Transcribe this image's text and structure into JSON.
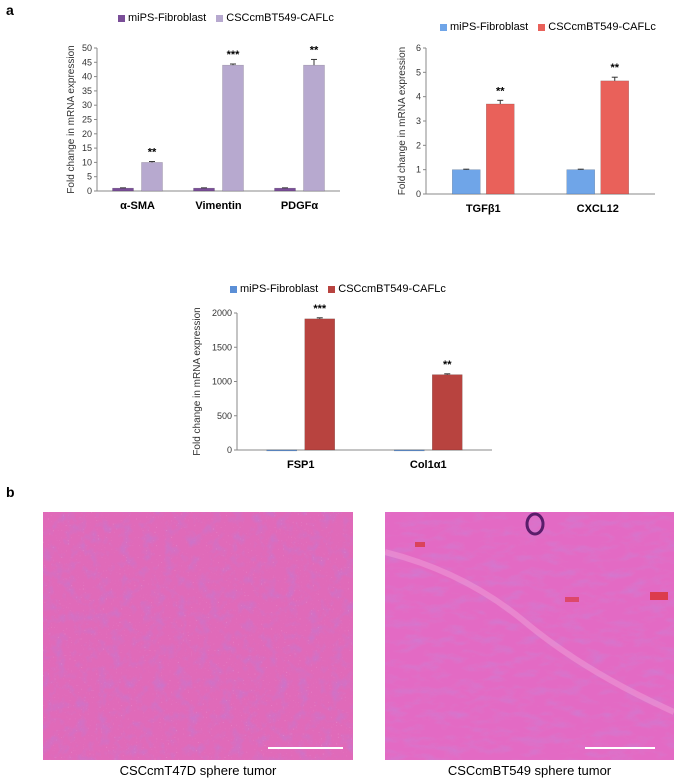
{
  "panel_labels": {
    "a": "a",
    "b": "b"
  },
  "chart_data": [
    {
      "type": "bar",
      "ylabel": "Fold change in mRNA expression",
      "ylim": [
        0,
        50
      ],
      "yticks": [
        0,
        5,
        10,
        15,
        20,
        25,
        30,
        35,
        40,
        45,
        50
      ],
      "categories": [
        "α-SMA",
        "Vimentin",
        "PDGFα"
      ],
      "series": [
        {
          "name": "miPS-Fibroblast",
          "color": "#7a4e98",
          "values": [
            1,
            1,
            1
          ],
          "errors": [
            0.1,
            0.1,
            0.1
          ]
        },
        {
          "name": "CSCcmBT549-CAFLc",
          "color": "#b7a9cf",
          "values": [
            10,
            44,
            44
          ],
          "errors": [
            0.3,
            0.4,
            2.0
          ]
        }
      ],
      "significance": [
        "**",
        "***",
        "**"
      ],
      "legend": "top"
    },
    {
      "type": "bar",
      "ylabel": "Fold change in mRNA expression",
      "ylim": [
        0,
        6
      ],
      "yticks": [
        0,
        1,
        2,
        3,
        4,
        5,
        6
      ],
      "categories": [
        "TGFβ1",
        "CXCL12"
      ],
      "series": [
        {
          "name": "miPS-Fibroblast",
          "color": "#6fa5e8",
          "values": [
            1,
            1
          ],
          "errors": [
            0.02,
            0.02
          ]
        },
        {
          "name": "CSCcmBT549-CAFLc",
          "color": "#e9615a",
          "values": [
            3.7,
            4.65
          ],
          "errors": [
            0.15,
            0.15
          ]
        }
      ],
      "significance": [
        "**",
        "**"
      ],
      "legend": "top"
    },
    {
      "type": "bar",
      "ylabel": "Fold change in mRNA expression",
      "ylim": [
        0,
        2000
      ],
      "yticks": [
        0,
        500,
        1000,
        1500,
        2000
      ],
      "categories": [
        "FSP1",
        "Col1α1"
      ],
      "series": [
        {
          "name": "miPS-Fibroblast",
          "color": "#5b8fd6",
          "values": [
            1,
            1
          ],
          "errors": [
            0,
            0
          ]
        },
        {
          "name": "CSCcmBT549-CAFLc",
          "color": "#b8433f",
          "values": [
            1915,
            1100
          ],
          "errors": [
            15,
            12
          ]
        }
      ],
      "significance": [
        "***",
        "**"
      ],
      "legend": "top"
    }
  ],
  "images": [
    {
      "caption": "CSCcmT47D sphere tumor",
      "description_icon": "histology-image"
    },
    {
      "caption": "CSCcmBT549 sphere tumor",
      "description_icon": "histology-image"
    }
  ]
}
